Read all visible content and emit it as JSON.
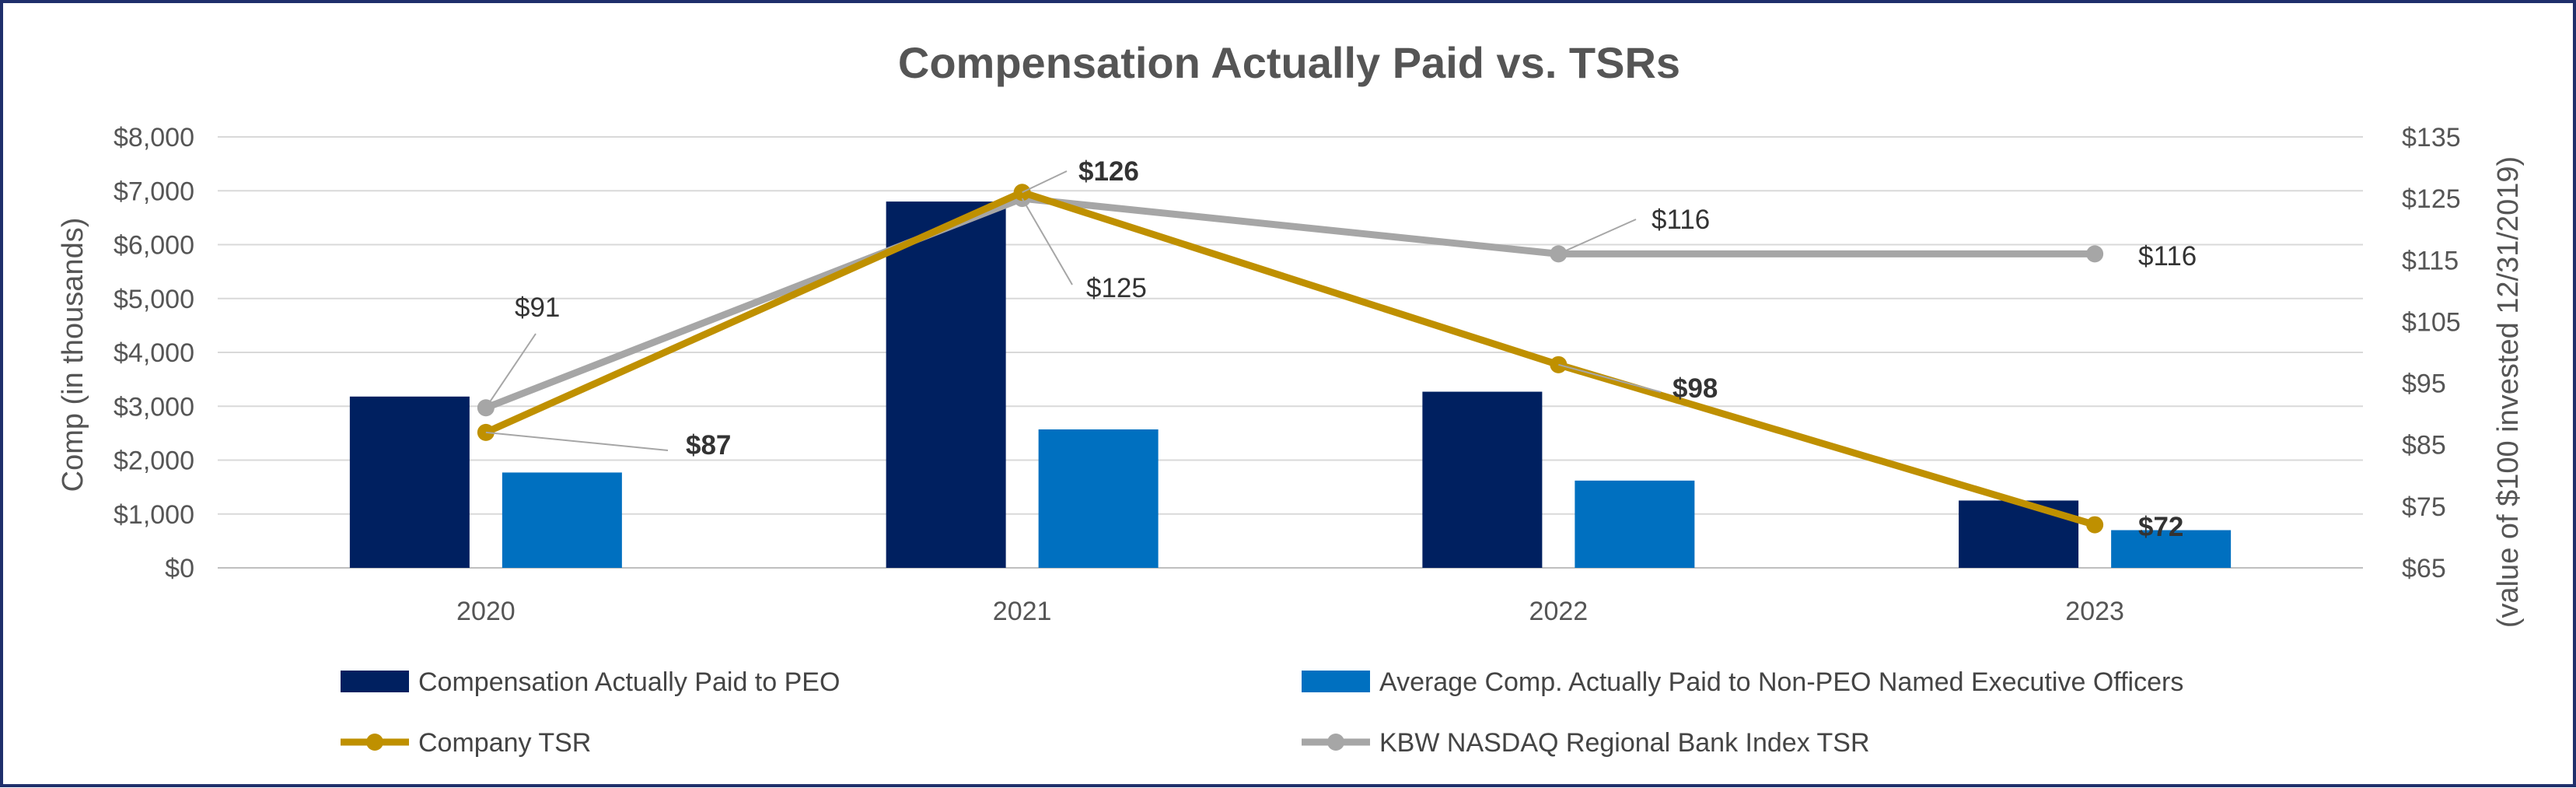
{
  "chart_data": {
    "type": "bar",
    "title": "Compensation Actually Paid vs. TSRs",
    "categories": [
      "2020",
      "2021",
      "2022",
      "2023"
    ],
    "ylabel": "Comp (in thousands)",
    "y2label": "(value of $100 invested 12/31/2019)",
    "ylim": [
      0,
      8000
    ],
    "y2lim": [
      65,
      135
    ],
    "yticks": [
      "$0",
      "$1,000",
      "$2,000",
      "$3,000",
      "$4,000",
      "$5,000",
      "$6,000",
      "$7,000",
      "$8,000"
    ],
    "y2ticks": [
      "$65",
      "$75",
      "$85",
      "$95",
      "$105",
      "$115",
      "$125",
      "$135"
    ],
    "series": [
      {
        "name": "Compensation Actually Paid to PEO",
        "kind": "bar",
        "axis": "left",
        "color": "#002060",
        "values": [
          3180,
          6800,
          3270,
          1250
        ]
      },
      {
        "name": "Average Comp. Actually Paid to Non-PEO Named Executive Officers",
        "kind": "bar",
        "axis": "left",
        "color": "#0070C0",
        "values": [
          1770,
          2570,
          1620,
          700
        ]
      },
      {
        "name": "Company TSR",
        "kind": "line",
        "axis": "right",
        "color": "#BF9000",
        "values": [
          87,
          126,
          98,
          72
        ],
        "labels": [
          "$87",
          "$126",
          "$98",
          "$72"
        ]
      },
      {
        "name": "KBW NASDAQ Regional Bank Index TSR",
        "kind": "line",
        "axis": "right",
        "color": "#A6A6A6",
        "values": [
          91,
          125,
          116,
          116
        ],
        "labels": [
          "$91",
          "$125",
          "$116",
          "$116"
        ]
      }
    ],
    "legend": "bottom",
    "grid": true
  }
}
